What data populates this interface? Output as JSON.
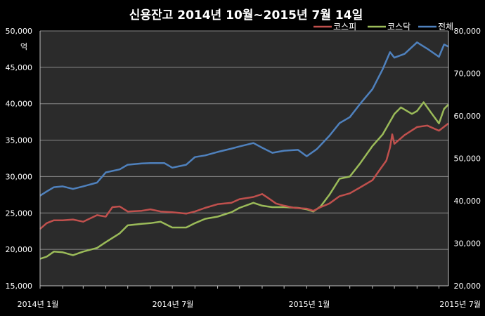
{
  "chart_data": {
    "type": "line",
    "title": "신용잔고 2014년 10월~2015년 7월 14일",
    "left_axis_unit": "억",
    "ylim_left": [
      15000,
      50000
    ],
    "ylim_right": [
      20000,
      80000
    ],
    "y_ticks_left": [
      "15,000",
      "20,000",
      "25,000",
      "30,000",
      "35,000",
      "40,000",
      "45,000",
      "50,000"
    ],
    "y_ticks_right": [
      "20,000",
      "30,000",
      "40,000",
      "50,000",
      "60,000",
      "70,000",
      "80,000"
    ],
    "x_tick_labels": [
      "2014년 1월",
      "2014년 7월",
      "2015년 1월",
      "2015년 7월"
    ],
    "x_range": [
      "2014-01-01",
      "2015-07-14"
    ],
    "grid": true,
    "legend_position": "top-right",
    "series": [
      {
        "name": "코스피",
        "axis": "left",
        "color": "#c0504d",
        "points": [
          [
            "2014-01-01",
            22800
          ],
          [
            "2014-01-10",
            23600
          ],
          [
            "2014-01-20",
            24000
          ],
          [
            "2014-02-01",
            24000
          ],
          [
            "2014-02-15",
            24100
          ],
          [
            "2014-03-01",
            23800
          ],
          [
            "2014-03-20",
            24700
          ],
          [
            "2014-04-01",
            24500
          ],
          [
            "2014-04-10",
            25800
          ],
          [
            "2014-04-20",
            25900
          ],
          [
            "2014-05-01",
            25200
          ],
          [
            "2014-05-20",
            25300
          ],
          [
            "2014-06-01",
            25500
          ],
          [
            "2014-06-15",
            25200
          ],
          [
            "2014-07-01",
            25100
          ],
          [
            "2014-07-20",
            24900
          ],
          [
            "2014-08-01",
            25200
          ],
          [
            "2014-08-15",
            25700
          ],
          [
            "2014-09-01",
            26200
          ],
          [
            "2014-09-20",
            26400
          ],
          [
            "2014-10-01",
            26900
          ],
          [
            "2014-10-20",
            27200
          ],
          [
            "2014-11-01",
            27600
          ],
          [
            "2014-11-10",
            27000
          ],
          [
            "2014-11-20",
            26300
          ],
          [
            "2014-12-01",
            26000
          ],
          [
            "2014-12-15",
            25700
          ],
          [
            "2015-01-01",
            25600
          ],
          [
            "2015-01-10",
            25300
          ],
          [
            "2015-01-20",
            25800
          ],
          [
            "2015-02-01",
            26300
          ],
          [
            "2015-02-15",
            27300
          ],
          [
            "2015-03-01",
            27700
          ],
          [
            "2015-03-15",
            28500
          ],
          [
            "2015-04-01",
            29500
          ],
          [
            "2015-04-10",
            30800
          ],
          [
            "2015-04-20",
            32200
          ],
          [
            "2015-04-25",
            34000
          ],
          [
            "2015-04-28",
            35800
          ],
          [
            "2015-05-01",
            34500
          ],
          [
            "2015-05-15",
            35700
          ],
          [
            "2015-06-01",
            36800
          ],
          [
            "2015-06-15",
            37000
          ],
          [
            "2015-07-01",
            36300
          ],
          [
            "2015-07-14",
            37300
          ]
        ]
      },
      {
        "name": "코스닥",
        "axis": "left",
        "color": "#9bbb59",
        "points": [
          [
            "2014-01-01",
            18700
          ],
          [
            "2014-01-10",
            19000
          ],
          [
            "2014-01-20",
            19700
          ],
          [
            "2014-02-01",
            19600
          ],
          [
            "2014-02-15",
            19200
          ],
          [
            "2014-03-01",
            19700
          ],
          [
            "2014-03-20",
            20200
          ],
          [
            "2014-04-01",
            21000
          ],
          [
            "2014-04-20",
            22200
          ],
          [
            "2014-05-01",
            23300
          ],
          [
            "2014-05-20",
            23500
          ],
          [
            "2014-06-01",
            23600
          ],
          [
            "2014-06-15",
            23800
          ],
          [
            "2014-07-01",
            23000
          ],
          [
            "2014-07-20",
            23000
          ],
          [
            "2014-08-01",
            23600
          ],
          [
            "2014-08-15",
            24200
          ],
          [
            "2014-09-01",
            24500
          ],
          [
            "2014-09-20",
            25100
          ],
          [
            "2014-10-01",
            25700
          ],
          [
            "2014-10-20",
            26400
          ],
          [
            "2014-11-01",
            26000
          ],
          [
            "2014-11-15",
            25800
          ],
          [
            "2014-12-01",
            25800
          ],
          [
            "2014-12-20",
            25700
          ],
          [
            "2015-01-01",
            25500
          ],
          [
            "2015-01-10",
            25200
          ],
          [
            "2015-01-20",
            25900
          ],
          [
            "2015-02-01",
            27500
          ],
          [
            "2015-02-15",
            29700
          ],
          [
            "2015-03-01",
            30000
          ],
          [
            "2015-03-15",
            31800
          ],
          [
            "2015-04-01",
            34200
          ],
          [
            "2015-04-15",
            35800
          ],
          [
            "2015-05-01",
            38600
          ],
          [
            "2015-05-10",
            39500
          ],
          [
            "2015-05-25",
            38600
          ],
          [
            "2015-06-01",
            39000
          ],
          [
            "2015-06-10",
            40200
          ],
          [
            "2015-06-20",
            38800
          ],
          [
            "2015-07-01",
            37300
          ],
          [
            "2015-07-08",
            39300
          ],
          [
            "2015-07-14",
            39900
          ]
        ]
      },
      {
        "name": "전체",
        "axis": "right",
        "color": "#4f81bd",
        "points": [
          [
            "2014-01-01",
            41200
          ],
          [
            "2014-01-10",
            42200
          ],
          [
            "2014-01-20",
            43200
          ],
          [
            "2014-02-01",
            43400
          ],
          [
            "2014-02-15",
            42800
          ],
          [
            "2014-03-01",
            43400
          ],
          [
            "2014-03-20",
            44300
          ],
          [
            "2014-04-01",
            46700
          ],
          [
            "2014-04-20",
            47400
          ],
          [
            "2014-05-01",
            48500
          ],
          [
            "2014-05-20",
            48800
          ],
          [
            "2014-06-01",
            48900
          ],
          [
            "2014-06-20",
            48900
          ],
          [
            "2014-07-01",
            47800
          ],
          [
            "2014-07-20",
            48500
          ],
          [
            "2014-08-01",
            50300
          ],
          [
            "2014-08-15",
            50700
          ],
          [
            "2014-09-01",
            51500
          ],
          [
            "2014-09-20",
            52300
          ],
          [
            "2014-10-01",
            52800
          ],
          [
            "2014-10-20",
            53600
          ],
          [
            "2014-11-01",
            52500
          ],
          [
            "2014-11-15",
            51300
          ],
          [
            "2014-12-01",
            51800
          ],
          [
            "2014-12-20",
            52000
          ],
          [
            "2015-01-01",
            50500
          ],
          [
            "2015-01-15",
            52200
          ],
          [
            "2015-02-01",
            55300
          ],
          [
            "2015-02-15",
            58300
          ],
          [
            "2015-03-01",
            59700
          ],
          [
            "2015-03-15",
            62800
          ],
          [
            "2015-04-01",
            66300
          ],
          [
            "2015-04-15",
            71000
          ],
          [
            "2015-04-25",
            75000
          ],
          [
            "2015-05-01",
            73700
          ],
          [
            "2015-05-15",
            74600
          ],
          [
            "2015-06-01",
            77300
          ],
          [
            "2015-06-15",
            75800
          ],
          [
            "2015-07-01",
            73900
          ],
          [
            "2015-07-08",
            76800
          ],
          [
            "2015-07-14",
            76300
          ]
        ]
      }
    ]
  }
}
